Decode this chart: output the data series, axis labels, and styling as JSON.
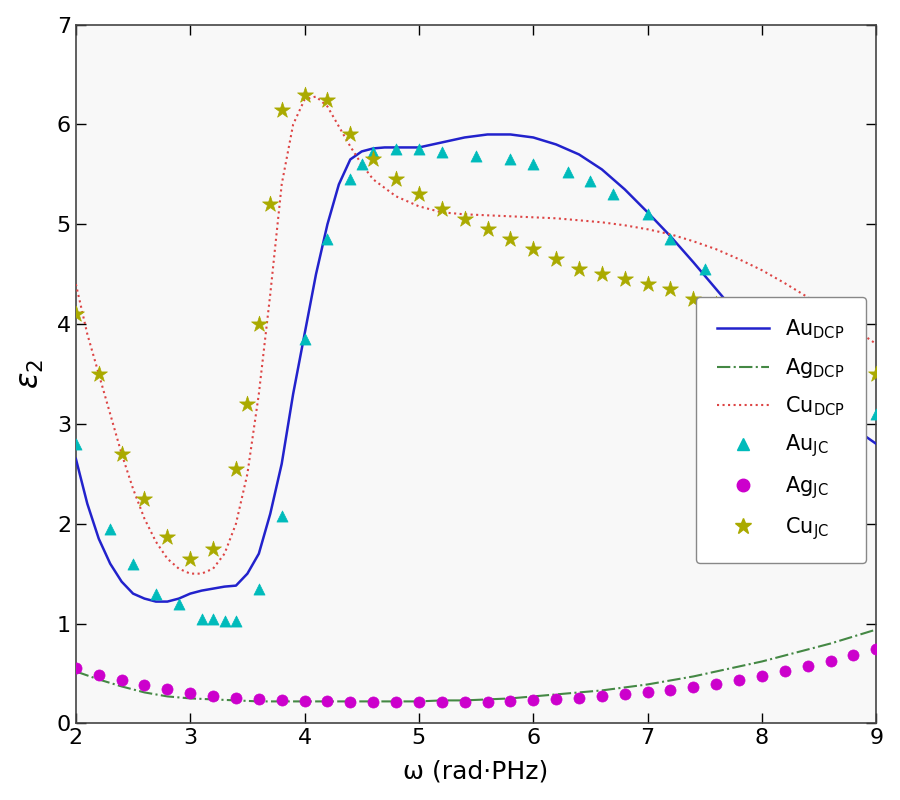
{
  "xlim": [
    2,
    9
  ],
  "ylim": [
    0,
    7
  ],
  "xticks": [
    2,
    3,
    4,
    5,
    6,
    7,
    8,
    9
  ],
  "yticks": [
    0,
    1,
    2,
    3,
    4,
    5,
    6,
    7
  ],
  "xlabel": "ω (rad·PHz)",
  "Au_DCP_x": [
    2.0,
    2.1,
    2.2,
    2.3,
    2.4,
    2.5,
    2.6,
    2.7,
    2.8,
    2.9,
    3.0,
    3.1,
    3.2,
    3.3,
    3.4,
    3.5,
    3.6,
    3.7,
    3.8,
    3.9,
    4.0,
    4.1,
    4.2,
    4.3,
    4.4,
    4.5,
    4.6,
    4.7,
    4.8,
    4.9,
    5.0,
    5.2,
    5.4,
    5.6,
    5.8,
    6.0,
    6.2,
    6.4,
    6.6,
    6.8,
    7.0,
    7.2,
    7.4,
    7.6,
    7.8,
    8.0,
    8.2,
    8.4,
    8.6,
    8.8,
    9.0
  ],
  "Au_DCP_y": [
    2.65,
    2.2,
    1.85,
    1.6,
    1.42,
    1.3,
    1.25,
    1.22,
    1.22,
    1.25,
    1.3,
    1.33,
    1.35,
    1.37,
    1.38,
    1.5,
    1.7,
    2.1,
    2.6,
    3.3,
    3.9,
    4.5,
    5.0,
    5.4,
    5.65,
    5.73,
    5.76,
    5.77,
    5.77,
    5.77,
    5.77,
    5.82,
    5.87,
    5.9,
    5.9,
    5.87,
    5.8,
    5.7,
    5.55,
    5.35,
    5.12,
    4.88,
    4.62,
    4.35,
    4.08,
    3.82,
    3.58,
    3.35,
    3.14,
    2.96,
    2.8
  ],
  "Ag_DCP_x": [
    2.0,
    2.2,
    2.4,
    2.6,
    2.8,
    3.0,
    3.2,
    3.4,
    3.6,
    3.8,
    4.0,
    4.2,
    4.4,
    4.6,
    4.8,
    5.0,
    5.2,
    5.4,
    5.6,
    5.8,
    6.0,
    6.2,
    6.4,
    6.6,
    6.8,
    7.0,
    7.2,
    7.4,
    7.6,
    7.8,
    8.0,
    8.2,
    8.4,
    8.6,
    8.8,
    9.0
  ],
  "Ag_DCP_y": [
    0.52,
    0.44,
    0.37,
    0.31,
    0.27,
    0.25,
    0.24,
    0.23,
    0.22,
    0.22,
    0.22,
    0.22,
    0.22,
    0.22,
    0.22,
    0.22,
    0.23,
    0.23,
    0.24,
    0.25,
    0.27,
    0.29,
    0.31,
    0.33,
    0.36,
    0.39,
    0.43,
    0.47,
    0.52,
    0.57,
    0.62,
    0.68,
    0.74,
    0.8,
    0.87,
    0.94
  ],
  "Cu_DCP_x": [
    2.0,
    2.1,
    2.2,
    2.3,
    2.4,
    2.5,
    2.6,
    2.7,
    2.8,
    2.9,
    3.0,
    3.1,
    3.2,
    3.3,
    3.4,
    3.5,
    3.6,
    3.7,
    3.8,
    3.9,
    4.0,
    4.1,
    4.2,
    4.3,
    4.4,
    4.5,
    4.6,
    4.8,
    5.0,
    5.2,
    5.4,
    5.6,
    5.8,
    6.0,
    6.2,
    6.4,
    6.6,
    6.8,
    7.0,
    7.2,
    7.4,
    7.6,
    7.8,
    8.0,
    8.2,
    8.4,
    8.6,
    8.8,
    9.0
  ],
  "Cu_DCP_y": [
    4.4,
    3.9,
    3.5,
    3.1,
    2.7,
    2.35,
    2.05,
    1.82,
    1.65,
    1.55,
    1.5,
    1.5,
    1.55,
    1.7,
    2.0,
    2.5,
    3.3,
    4.3,
    5.4,
    6.0,
    6.25,
    6.28,
    6.18,
    5.98,
    5.78,
    5.6,
    5.45,
    5.28,
    5.18,
    5.12,
    5.1,
    5.09,
    5.08,
    5.07,
    5.06,
    5.04,
    5.02,
    4.99,
    4.95,
    4.9,
    4.83,
    4.75,
    4.65,
    4.54,
    4.41,
    4.27,
    4.12,
    3.96,
    3.8
  ],
  "Au_JC_x": [
    2.0,
    2.3,
    2.5,
    2.7,
    2.9,
    3.1,
    3.2,
    3.3,
    3.4,
    3.6,
    3.8,
    4.0,
    4.2,
    4.4,
    4.5,
    4.6,
    4.8,
    5.0,
    5.2,
    5.5,
    5.8,
    6.0,
    6.3,
    6.5,
    6.7,
    7.0,
    7.2,
    7.5,
    7.8,
    8.0,
    8.3,
    8.5,
    8.7,
    9.0
  ],
  "Au_JC_y": [
    2.8,
    1.95,
    1.6,
    1.3,
    1.2,
    1.05,
    1.05,
    1.03,
    1.03,
    1.35,
    2.08,
    3.85,
    4.85,
    5.45,
    5.6,
    5.72,
    5.75,
    5.75,
    5.72,
    5.68,
    5.65,
    5.6,
    5.52,
    5.43,
    5.3,
    5.1,
    4.85,
    4.55,
    4.2,
    3.95,
    3.7,
    3.55,
    3.35,
    3.1
  ],
  "Ag_JC_x": [
    2.0,
    2.2,
    2.4,
    2.6,
    2.8,
    3.0,
    3.2,
    3.4,
    3.6,
    3.8,
    4.0,
    4.2,
    4.4,
    4.6,
    4.8,
    5.0,
    5.2,
    5.4,
    5.6,
    5.8,
    6.0,
    6.2,
    6.4,
    6.6,
    6.8,
    7.0,
    7.2,
    7.4,
    7.6,
    7.8,
    8.0,
    8.2,
    8.4,
    8.6,
    8.8,
    9.0
  ],
  "Ag_JC_y": [
    0.55,
    0.48,
    0.43,
    0.38,
    0.34,
    0.3,
    0.27,
    0.25,
    0.24,
    0.23,
    0.22,
    0.22,
    0.21,
    0.21,
    0.21,
    0.21,
    0.21,
    0.21,
    0.21,
    0.22,
    0.23,
    0.24,
    0.25,
    0.27,
    0.29,
    0.31,
    0.33,
    0.36,
    0.39,
    0.43,
    0.47,
    0.52,
    0.57,
    0.62,
    0.68,
    0.74
  ],
  "Cu_JC_x": [
    2.0,
    2.2,
    2.4,
    2.6,
    2.8,
    3.0,
    3.2,
    3.4,
    3.5,
    3.6,
    3.7,
    3.8,
    4.0,
    4.2,
    4.4,
    4.6,
    4.8,
    5.0,
    5.2,
    5.4,
    5.6,
    5.8,
    6.0,
    6.2,
    6.4,
    6.6,
    6.8,
    7.0,
    7.2,
    7.4,
    7.6,
    7.8,
    8.0,
    8.2,
    8.4,
    8.6,
    8.8,
    9.0
  ],
  "Cu_JC_y": [
    4.1,
    3.5,
    2.7,
    2.25,
    1.87,
    1.65,
    1.75,
    2.55,
    3.2,
    4.0,
    5.2,
    6.15,
    6.3,
    6.25,
    5.9,
    5.65,
    5.45,
    5.3,
    5.15,
    5.05,
    4.95,
    4.85,
    4.75,
    4.65,
    4.55,
    4.5,
    4.45,
    4.4,
    4.35,
    4.25,
    4.2,
    4.15,
    4.05,
    3.97,
    3.87,
    3.78,
    3.62,
    3.5
  ],
  "Au_DCP_color": "#2222cc",
  "Ag_DCP_color": "#448844",
  "Cu_DCP_color": "#dd4444",
  "Au_JC_color": "#00bbbb",
  "Ag_JC_color": "#cc00cc",
  "Cu_JC_color": "#aaaa00",
  "bg_color": "#f8f8f8",
  "fig_bg_color": "#ffffff"
}
